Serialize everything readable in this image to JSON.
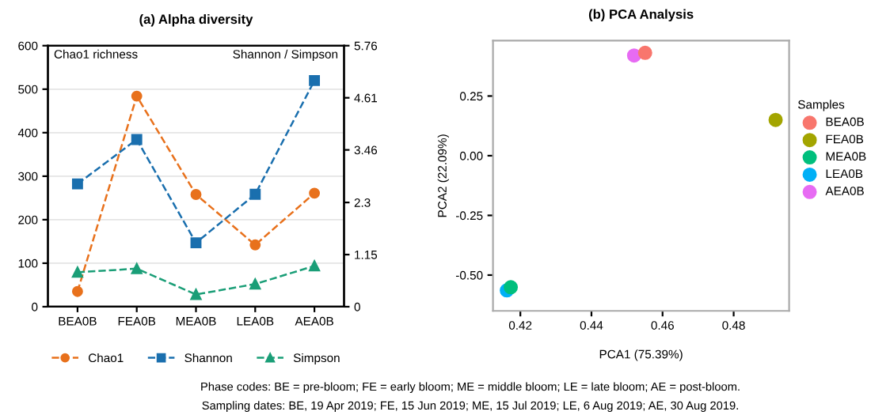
{
  "chart_data": [
    {
      "type": "line",
      "title": "(a) Alpha diversity",
      "ylabel": "Chao1 richness",
      "y2label": "Shannon / Simpson",
      "categories": [
        "BEA0B",
        "FEA0B",
        "MEA0B",
        "LEA0B",
        "AEA0B"
      ],
      "series": [
        {
          "name": "Chao1",
          "color": "#e8711c",
          "marker": "circle",
          "values": [
            35,
            484,
            258,
            142,
            261
          ]
        },
        {
          "name": "Shannon",
          "color": "#1a6fae",
          "marker": "square",
          "axis": "y2",
          "values": [
            2.71,
            3.69,
            1.41,
            2.48,
            4.99
          ]
        },
        {
          "name": "Simpson",
          "color": "#1a9e77",
          "marker": "triangle",
          "axis": "y2",
          "values": [
            0.76,
            0.84,
            0.27,
            0.5,
            0.9
          ]
        }
      ],
      "line_style": "dashed",
      "ylim": [
        0,
        600
      ],
      "yticks": [
        0,
        100,
        200,
        300,
        400,
        500,
        600
      ],
      "y2lim": [
        0,
        5.76
      ],
      "y2ticks": [
        0,
        1.15,
        2.3,
        3.46,
        4.61,
        5.76
      ],
      "grid": "y",
      "legend": "bottom",
      "annotations": [
        "Phase codes: BE = pre-bloom; FE = early bloom; ME = middle bloom; LE = late bloom; AE = post-bloom.",
        "Sampling dates: BE, 19 Apr 2019; FE, 15 Jun 2019; ME, 15 Jul 2019; LE, 6 Aug 2019; AE, 30 Aug 2019."
      ]
    },
    {
      "type": "scatter",
      "title": "(b) PCA Analysis",
      "xlabel": "PCA1 (75.39%)",
      "ylabel": "PCA2 (22.09%)",
      "legend_title": "Samples",
      "legend": "right",
      "marker": "circle",
      "series": [
        {
          "name": "BEA0B",
          "color": "#f8766d",
          "x": [
            0.4551
          ],
          "values": [
            0.431
          ]
        },
        {
          "name": "FEA0B",
          "color": "#a3a500",
          "x": [
            0.4918
          ],
          "values": [
            0.15
          ]
        },
        {
          "name": "MEA0B",
          "color": "#00bf7d",
          "x": [
            0.4173
          ],
          "values": [
            -0.551
          ]
        },
        {
          "name": "LEA0B",
          "color": "#00b0f6",
          "x": [
            0.4162
          ],
          "values": [
            -0.564
          ]
        },
        {
          "name": "AEA0B",
          "color": "#e76bf3",
          "x": [
            0.452
          ],
          "values": [
            0.42
          ]
        }
      ],
      "xlim": [
        0.4123,
        0.4956
      ],
      "xticks": [
        0.42,
        0.44,
        0.46,
        0.48
      ],
      "ylim": [
        -0.65,
        0.482
      ],
      "yticks": [
        {
          "value": -0.5,
          "label": "-0.50"
        },
        {
          "value": -0.25,
          "label": "-0.25"
        },
        {
          "value": 0,
          "label": "0.00"
        },
        {
          "value": 0.25,
          "label": "0.25"
        }
      ],
      "grid": false
    }
  ]
}
